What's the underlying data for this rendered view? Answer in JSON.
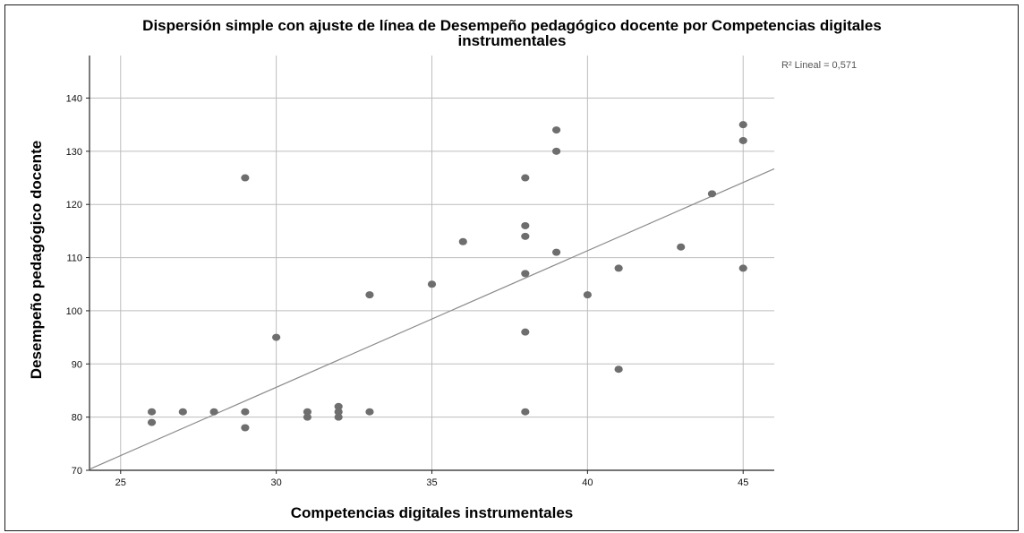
{
  "chart_data": {
    "type": "scatter",
    "title": "Dispersión simple con ajuste de línea de Desempeño pedagógico docente por Competencias digitales instrumentales",
    "title_lines": [
      "Dispersión simple con ajuste de línea de Desempeño pedagógico docente por Competencias digitales",
      "instrumentales"
    ],
    "xlabel": "Competencias digitales instrumentales",
    "ylabel": "Desempeño pedagógico docente",
    "xlim": [
      24,
      46
    ],
    "ylim": [
      70,
      148
    ],
    "xticks": [
      25,
      30,
      35,
      40,
      45
    ],
    "yticks": [
      70,
      80,
      90,
      100,
      110,
      120,
      130,
      140
    ],
    "grid": true,
    "r2_label": "R² Lineal = 0,571",
    "fit_line": {
      "x": [
        24,
        46
      ],
      "y": [
        70.2,
        126.7
      ]
    },
    "marker_color": "#6e6e6e",
    "line_color": "#8c8c8c",
    "points": [
      {
        "x": 26,
        "y": 81
      },
      {
        "x": 26,
        "y": 79
      },
      {
        "x": 27,
        "y": 81
      },
      {
        "x": 28,
        "y": 81
      },
      {
        "x": 29,
        "y": 125
      },
      {
        "x": 29,
        "y": 81
      },
      {
        "x": 29,
        "y": 78
      },
      {
        "x": 30,
        "y": 95
      },
      {
        "x": 31,
        "y": 81
      },
      {
        "x": 31,
        "y": 80
      },
      {
        "x": 32,
        "y": 82
      },
      {
        "x": 32,
        "y": 81
      },
      {
        "x": 32,
        "y": 80
      },
      {
        "x": 33,
        "y": 103
      },
      {
        "x": 33,
        "y": 81
      },
      {
        "x": 35,
        "y": 105
      },
      {
        "x": 36,
        "y": 113
      },
      {
        "x": 38,
        "y": 125
      },
      {
        "x": 38,
        "y": 116
      },
      {
        "x": 38,
        "y": 114
      },
      {
        "x": 38,
        "y": 107
      },
      {
        "x": 38,
        "y": 96
      },
      {
        "x": 38,
        "y": 81
      },
      {
        "x": 39,
        "y": 134
      },
      {
        "x": 39,
        "y": 130
      },
      {
        "x": 39,
        "y": 111
      },
      {
        "x": 40,
        "y": 103
      },
      {
        "x": 41,
        "y": 108
      },
      {
        "x": 41,
        "y": 89
      },
      {
        "x": 43,
        "y": 112
      },
      {
        "x": 44,
        "y": 122
      },
      {
        "x": 45,
        "y": 135
      },
      {
        "x": 45,
        "y": 132
      },
      {
        "x": 45,
        "y": 108
      }
    ]
  }
}
